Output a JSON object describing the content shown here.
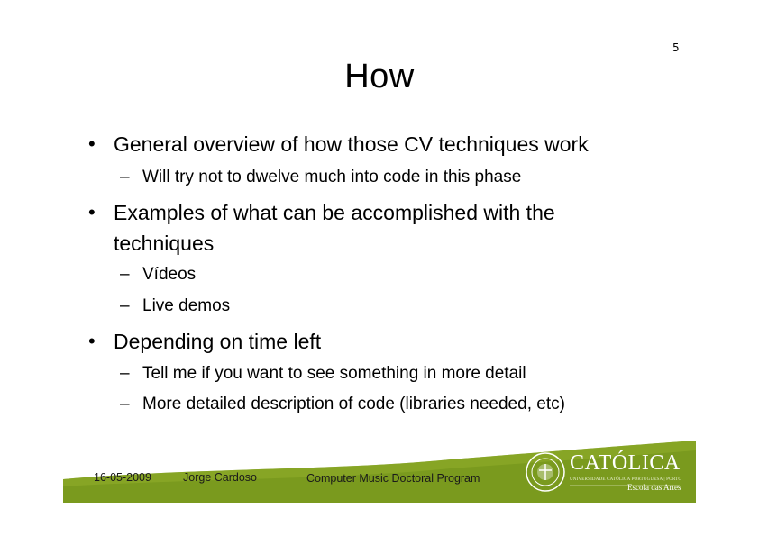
{
  "slide": {
    "page_number": "5",
    "title": "How",
    "bullets": [
      {
        "text": "General overview of how those CV techniques work",
        "sub": [
          "Will try not to dwelve much into code in this phase"
        ]
      },
      {
        "text": "Examples of what can be accomplished with the techniques",
        "sub": [
          "Vídeos",
          "Live demos"
        ]
      },
      {
        "text": "Depending on time left",
        "sub": [
          "Tell me if you want to see something in more detail",
          "More detailed description of code (libraries needed, etc)"
        ]
      }
    ],
    "bullet_glyph": "•",
    "sub_glyph": "–"
  },
  "footer": {
    "date": "16-05-2009",
    "author": "Jorge Cardoso",
    "program": "Computer Music Doctoral Program",
    "band_color": "#7a9a1e"
  },
  "logo": {
    "name": "CATÓLICA",
    "subtitle": "UNIVERSIDADE CATÓLICA PORTUGUESA | PORTO",
    "school": "Escola das Artes"
  }
}
